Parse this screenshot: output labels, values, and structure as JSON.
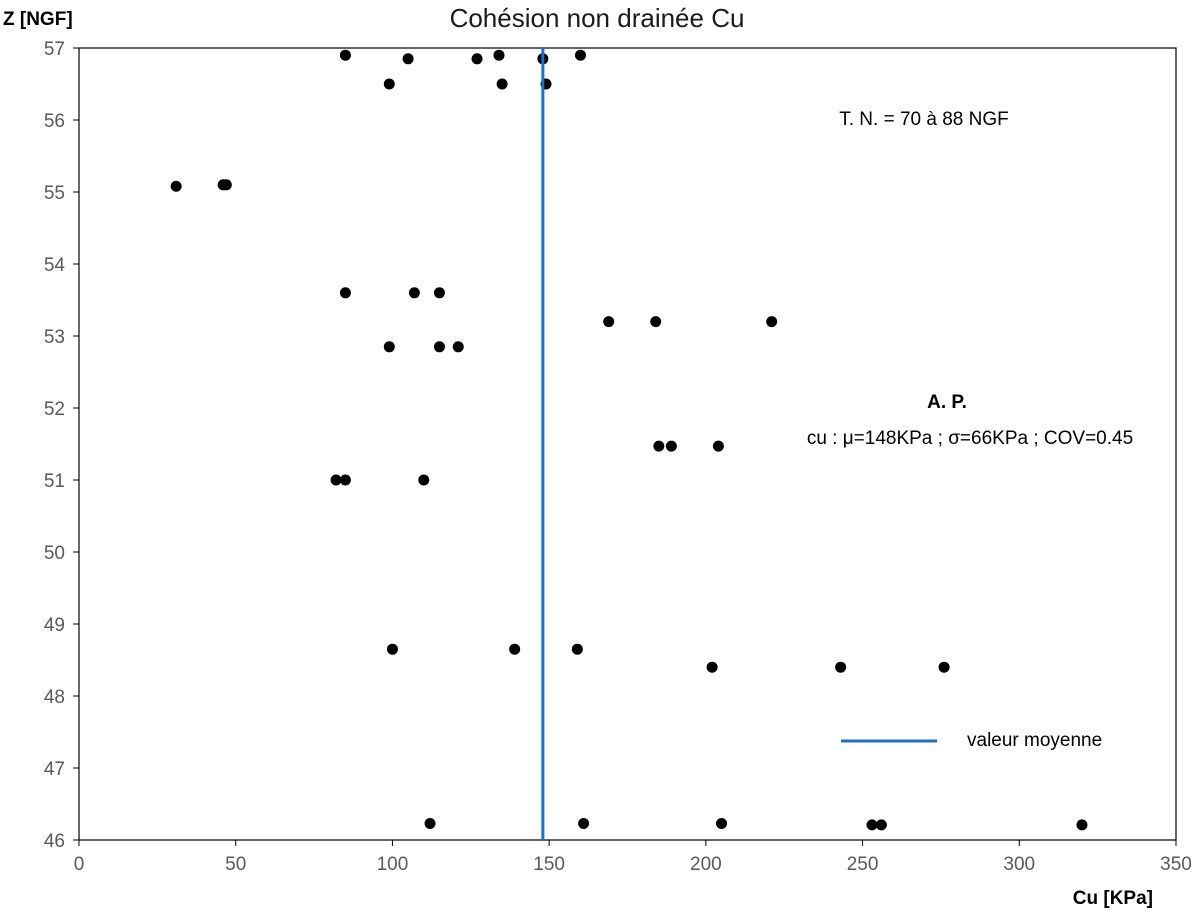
{
  "chart_data": {
    "type": "scatter",
    "title": "Cohésion non drainée Cu",
    "xlabel": "Cu [KPa]",
    "ylabel": "Z [NGF]",
    "xlim": [
      0,
      350
    ],
    "ylim": [
      46,
      57
    ],
    "x_ticks": [
      "0",
      "50",
      "100",
      "150",
      "200",
      "250",
      "300",
      "350"
    ],
    "y_ticks": [
      "46",
      "47",
      "48",
      "49",
      "50",
      "51",
      "52",
      "53",
      "54",
      "55",
      "56",
      "57"
    ],
    "grid": false,
    "series": [
      {
        "type": "scatter",
        "color": "#000000",
        "points": [
          [
            85,
            56.9
          ],
          [
            105,
            56.85
          ],
          [
            127,
            56.85
          ],
          [
            134,
            56.9
          ],
          [
            148,
            56.85
          ],
          [
            160,
            56.9
          ],
          [
            99,
            56.5
          ],
          [
            135,
            56.5
          ],
          [
            149,
            56.5
          ],
          [
            31,
            55.08
          ],
          [
            46,
            55.1
          ],
          [
            47,
            55.1
          ],
          [
            85,
            53.6
          ],
          [
            107,
            53.6
          ],
          [
            115,
            53.6
          ],
          [
            169,
            53.2
          ],
          [
            184,
            53.2
          ],
          [
            221,
            53.2
          ],
          [
            99,
            52.85
          ],
          [
            115,
            52.85
          ],
          [
            121,
            52.85
          ],
          [
            185,
            51.47
          ],
          [
            189,
            51.47
          ],
          [
            204,
            51.47
          ],
          [
            82,
            51.0
          ],
          [
            85,
            51.0
          ],
          [
            110,
            51.0
          ],
          [
            100,
            48.65
          ],
          [
            139,
            48.65
          ],
          [
            159,
            48.65
          ],
          [
            202,
            48.4
          ],
          [
            243,
            48.4
          ],
          [
            276,
            48.4
          ],
          [
            112,
            46.23
          ],
          [
            161,
            46.23
          ],
          [
            205,
            46.23
          ],
          [
            253,
            46.21
          ],
          [
            256,
            46.21
          ],
          [
            320,
            46.21
          ]
        ]
      },
      {
        "name": "valeur moyenne",
        "type": "vertical-line",
        "color": "#1f6fc5",
        "x": 148
      }
    ],
    "legend": {
      "position": "bottom-right",
      "entries": [
        "valeur moyenne"
      ]
    },
    "annotations": {
      "tn": "T. N. = 70 à 88 NGF",
      "ap_title": "A. P.",
      "ap_stats": "cu : μ=148KPa ; σ=66KPa ; COV=0.45"
    }
  }
}
